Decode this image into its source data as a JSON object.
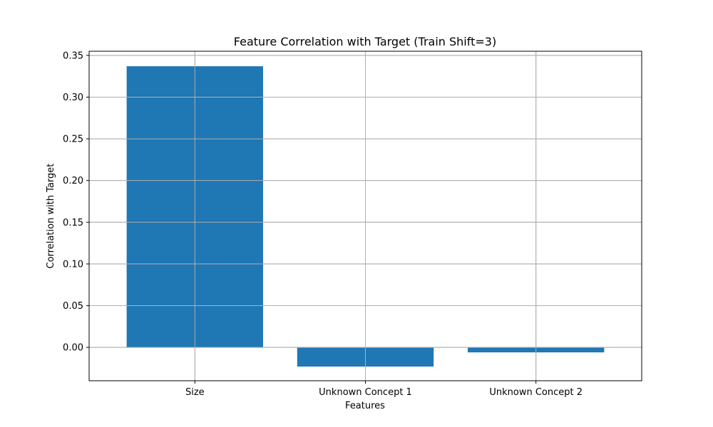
{
  "chart_data": {
    "type": "bar",
    "title": "Feature Correlation with Target (Train Shift=3)",
    "xlabel": "Features",
    "ylabel": "Correlation with Target",
    "categories": [
      "Size",
      "Unknown Concept 1",
      "Unknown Concept 2"
    ],
    "values": [
      0.337,
      -0.023,
      -0.006
    ],
    "ylim": [
      -0.04,
      0.355
    ],
    "yticks": [
      "0.00",
      "0.05",
      "0.10",
      "0.15",
      "0.20",
      "0.25",
      "0.30",
      "0.35"
    ],
    "grid": true,
    "legend": "none",
    "colors": {
      "bar": "#1f77b4",
      "grid": "#b0b0b0",
      "axis": "#000000",
      "background": "#ffffff"
    }
  }
}
